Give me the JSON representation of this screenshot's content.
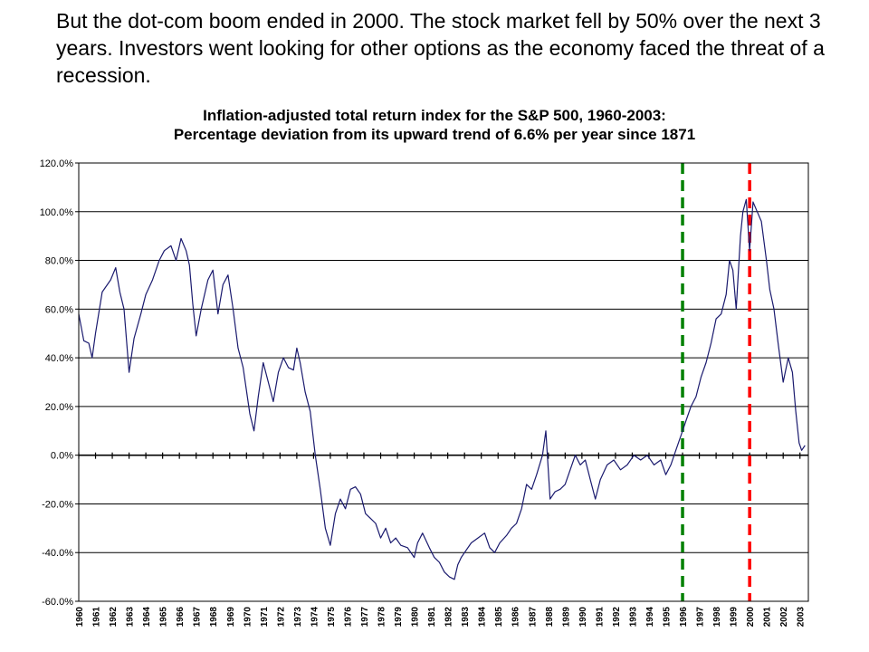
{
  "slide": {
    "text": "But the dot-com boom ended in 2000. The stock market fell by 50% over the next 3 years. Investors went looking for other options as the economy faced the threat of a recession."
  },
  "chart_data": {
    "type": "line",
    "title": "Inflation-adjusted total return index for the S&P 500, 1960-2003:",
    "subtitle": "Percentage deviation from its upward trend of 6.6% per year since 1871",
    "xlabel": "",
    "ylabel": "",
    "xlim": [
      1960,
      2003.5
    ],
    "ylim": [
      -60,
      120
    ],
    "y_ticks": [
      120,
      100,
      80,
      60,
      40,
      20,
      0,
      -20,
      -40,
      -60
    ],
    "y_tick_labels": [
      "120.0%",
      "100.0%",
      "80.0%",
      "60.0%",
      "40.0%",
      "20.0%",
      "0.0%",
      "-20.0%",
      "-40.0%",
      "-60.0%"
    ],
    "x_tick_labels": [
      "1960",
      "1961",
      "1962",
      "1963",
      "1964",
      "1965",
      "1966",
      "1967",
      "1968",
      "1969",
      "1970",
      "1971",
      "1972",
      "1973",
      "1974",
      "1975",
      "1976",
      "1977",
      "1978",
      "1979",
      "1980",
      "1981",
      "1982",
      "1983",
      "1984",
      "1985",
      "1986",
      "1987",
      "1988",
      "1989",
      "1990",
      "1991",
      "1992",
      "1993",
      "1994",
      "1995",
      "1996",
      "1997",
      "1998",
      "1999",
      "2000",
      "2001",
      "2002",
      "2003"
    ],
    "grid": "horizontal",
    "series": [
      {
        "color": "#1a1a6e",
        "x": [
          1960.0,
          1960.3,
          1960.6,
          1960.8,
          1961.0,
          1961.4,
          1961.9,
          1962.2,
          1962.45,
          1962.7,
          1963.0,
          1963.3,
          1963.7,
          1964.0,
          1964.4,
          1964.8,
          1965.1,
          1965.5,
          1965.8,
          1966.1,
          1966.4,
          1966.6,
          1966.8,
          1967.0,
          1967.3,
          1967.7,
          1968.0,
          1968.3,
          1968.6,
          1968.9,
          1969.2,
          1969.5,
          1969.8,
          1970.2,
          1970.45,
          1970.7,
          1971.0,
          1971.3,
          1971.6,
          1971.9,
          1972.2,
          1972.5,
          1972.8,
          1973.0,
          1973.2,
          1973.5,
          1973.8,
          1974.1,
          1974.4,
          1974.7,
          1975.0,
          1975.3,
          1975.6,
          1975.9,
          1976.2,
          1976.5,
          1976.8,
          1977.1,
          1977.4,
          1977.7,
          1978.0,
          1978.3,
          1978.6,
          1978.9,
          1979.2,
          1979.6,
          1980.0,
          1980.2,
          1980.5,
          1980.9,
          1981.2,
          1981.5,
          1981.8,
          1982.1,
          1982.4,
          1982.6,
          1982.8,
          1983.0,
          1983.4,
          1983.8,
          1984.2,
          1984.5,
          1984.8,
          1985.1,
          1985.5,
          1985.8,
          1986.1,
          1986.4,
          1986.7,
          1987.0,
          1987.3,
          1987.65,
          1987.85,
          1988.1,
          1988.4,
          1988.7,
          1989.0,
          1989.3,
          1989.6,
          1989.9,
          1990.2,
          1990.5,
          1990.8,
          1991.1,
          1991.5,
          1991.9,
          1992.3,
          1992.7,
          1993.1,
          1993.5,
          1993.9,
          1994.3,
          1994.7,
          1995.0,
          1995.3,
          1995.6,
          1995.9,
          1996.2,
          1996.5,
          1996.8,
          1997.1,
          1997.4,
          1997.7,
          1998.0,
          1998.3,
          1998.6,
          1998.8,
          1999.0,
          1999.2,
          1999.45,
          1999.6,
          1999.8,
          2000.0,
          2000.2,
          2000.45,
          2000.7,
          2001.0,
          2001.2,
          2001.45,
          2001.7,
          2002.0,
          2002.3,
          2002.55,
          2002.75,
          2002.95,
          2003.1,
          2003.3
        ],
        "values": [
          58,
          47,
          46,
          40,
          50,
          67,
          72,
          77,
          67,
          60,
          34,
          48,
          58,
          66,
          72,
          80,
          84,
          86,
          80,
          89,
          84,
          78,
          62,
          49,
          60,
          72,
          76,
          58,
          70,
          74,
          60,
          44,
          36,
          17,
          10,
          24,
          38,
          30,
          22,
          34,
          40,
          36,
          35,
          44,
          38,
          26,
          18,
          0,
          -14,
          -30,
          -37,
          -24,
          -18,
          -22,
          -14,
          -13,
          -16,
          -24,
          -26,
          -28,
          -34,
          -30,
          -36,
          -34,
          -37,
          -38,
          -42,
          -36,
          -32,
          -38,
          -42,
          -44,
          -48,
          -50,
          -51,
          -45,
          -42,
          -40,
          -36,
          -34,
          -32,
          -38,
          -40,
          -36,
          -33,
          -30,
          -28,
          -22,
          -12,
          -14,
          -8,
          0,
          10,
          -18,
          -15,
          -14,
          -12,
          -6,
          0,
          -4,
          -2,
          -10,
          -18,
          -10,
          -4,
          -2,
          -6,
          -4,
          0,
          -2,
          0,
          -4,
          -2,
          -8,
          -4,
          2,
          8,
          14,
          20,
          24,
          32,
          38,
          46,
          56,
          58,
          66,
          80,
          76,
          60,
          90,
          100,
          105,
          84,
          104,
          100,
          96,
          80,
          68,
          60,
          46,
          30,
          40,
          34,
          18,
          5,
          2,
          4
        ]
      }
    ],
    "annotations": [
      {
        "type": "vline",
        "x": 1996,
        "color": "#008000",
        "style": "dashed"
      },
      {
        "type": "vline",
        "x": 2000,
        "color": "#ff0000",
        "style": "dashed"
      }
    ]
  }
}
